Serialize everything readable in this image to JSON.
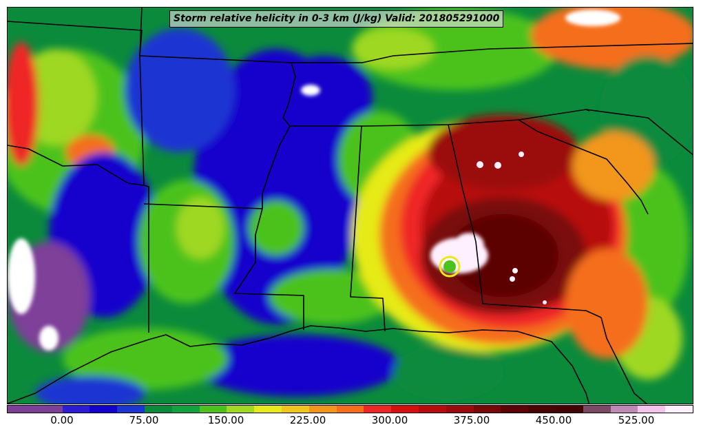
{
  "title": "Storm relative helicity in 0-3 km (J/kg) Valid: 201805291000",
  "colorbar": {
    "ticks": [
      "0.00",
      "75.00",
      "150.00",
      "225.00",
      "300.00",
      "375.00",
      "450.00",
      "525.00"
    ],
    "colors": [
      "#7e3f98",
      "#7e3f98",
      "#2e1bd6",
      "#1300cf",
      "#1a35d2",
      "#0b8a3c",
      "#10a23c",
      "#4cc21f",
      "#9ed823",
      "#e6ea19",
      "#f3c41b",
      "#f2961b",
      "#f56e1c",
      "#ef2626",
      "#d80f0f",
      "#b80b0b",
      "#9b0b0b",
      "#7a0707",
      "#5c0404",
      "#4a0202",
      "#440202",
      "#7d4a66",
      "#c08ab6",
      "#f3c3ee",
      "#fff0ff"
    ]
  },
  "legend_colors": {
    "background": "#0b8a3c",
    "land_low": "#1500cc",
    "mid": "#4cc21f",
    "high": "#ef2626",
    "extreme": "#5c0404",
    "saturated": "#fff0ff"
  }
}
